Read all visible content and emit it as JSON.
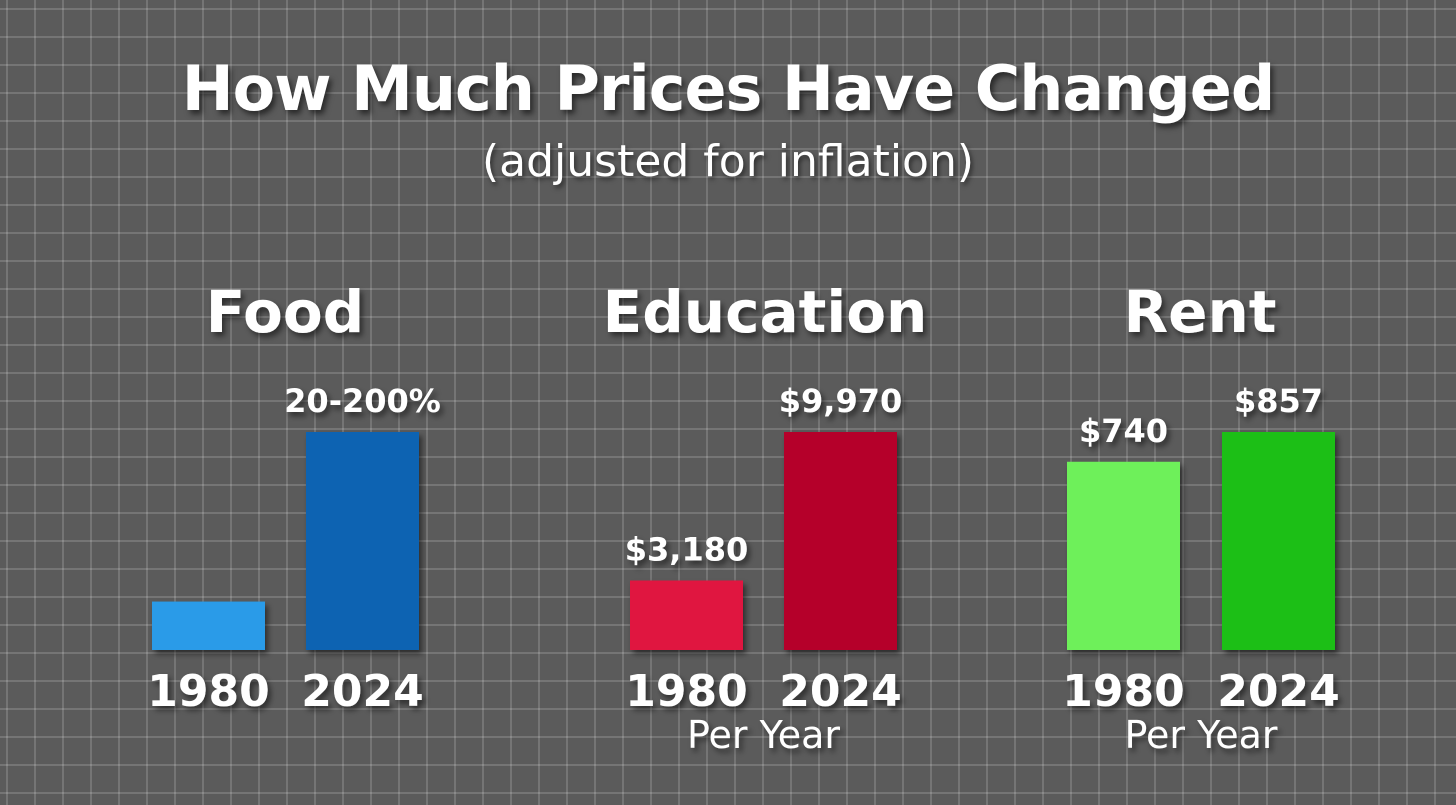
{
  "title": "How Much Prices Have Changed",
  "subtitle": "(adjusted for inflation)",
  "chart_data": [
    {
      "type": "bar",
      "title": "Food",
      "categories": [
        "1980",
        "2024"
      ],
      "values": [
        1,
        4.5
      ],
      "value_labels": [
        "",
        "20-200%"
      ],
      "colors": [
        "#2b9be8",
        "#0f63b2"
      ],
      "note": ""
    },
    {
      "type": "bar",
      "title": "Education",
      "categories": [
        "1980",
        "2024"
      ],
      "values": [
        3180,
        9970
      ],
      "value_labels": [
        "$3,180",
        "$9,970"
      ],
      "colors": [
        "#e0183f",
        "#b5002a"
      ],
      "note": "Per Year"
    },
    {
      "type": "bar",
      "title": "Rent",
      "categories": [
        "1980",
        "2024"
      ],
      "values": [
        740,
        857
      ],
      "value_labels": [
        "$740",
        "$857"
      ],
      "colors": [
        "#6ef05a",
        "#1bbf12"
      ],
      "note": "Per Year"
    }
  ]
}
